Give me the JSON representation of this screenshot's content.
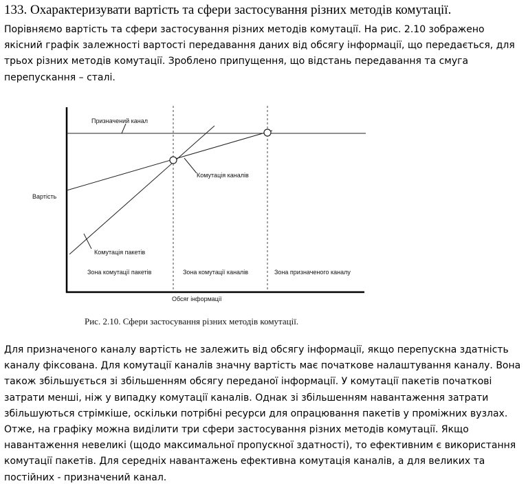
{
  "heading": "133. Охарактеризувати вартість та сфери застосування різних методів комутації.",
  "intro": "Порівняємо вартість та сфери застосування різних методів комутації. На рис. 2.10 зображено якісний графік залежності вартості передавання даних від обсягу інформації, що передається, для трьох різних методів комутації. Зроблено припущення, що відстань передавання та смуга перепускання – сталі.",
  "figure": {
    "caption": "Рис. 2.10. Сфери застосування різних методів комутації.",
    "y_label": "Вартість",
    "x_label": "Обсяг інформації",
    "line_labels": {
      "dedicated": "Призначений канал",
      "circuit": "Комутація каналів",
      "packet": "Комутація пакетів"
    },
    "zones": [
      "Зона комутації пакетів",
      "Зона комутації каналів",
      "Зона призначеного каналу"
    ]
  },
  "body": "Для призначеного каналу вартість не залежить від обсягу інформації, якщо перепускна здатність каналу фіксована. Для комутації каналів значну вартість має початкове налаштування каналу. Вона також збільшується зі збільшенням обсягу переданої інформації. У комутації пакетів початкові затрати менші, ніж у випадку комутації каналів. Однак зі збільшенням навантаження затрати збільшуються стрімкіше, оскільки потрібні ресурси для опрацювання пакетів у проміжних вузлах. Отже, на графіку можна виділити три сфери застосування різних методів комутації. Якщо навантаження невеликі (щодо максимальної пропускної здатності), то ефективним є використання комутації пакетів. Для середніх навантажень ефективна комутація каналів, а для великих та постійних - призначений канал."
}
